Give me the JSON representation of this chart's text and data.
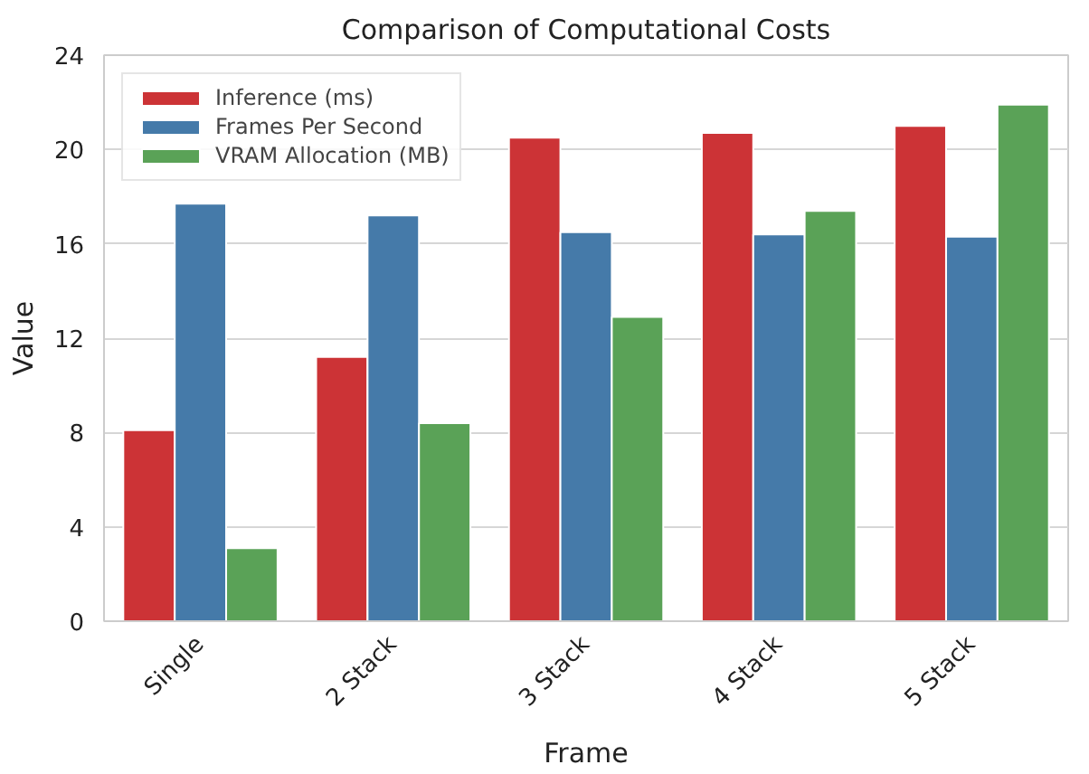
{
  "chart_data": {
    "type": "bar",
    "title": "Comparison of Computational Costs",
    "xlabel": "Frame",
    "ylabel": "Value",
    "categories": [
      "Single",
      "2 Stack",
      "3 Stack",
      "4 Stack",
      "5 Stack"
    ],
    "series": [
      {
        "name": "Inference (ms)",
        "color": "#cc3336",
        "values": [
          8.1,
          11.2,
          20.5,
          20.7,
          21.0
        ]
      },
      {
        "name": "Frames Per Second",
        "color": "#457aa9",
        "values": [
          17.7,
          17.2,
          16.5,
          16.4,
          16.3
        ]
      },
      {
        "name": "VRAM Allocation (MB)",
        "color": "#5aa257",
        "values": [
          3.1,
          8.4,
          12.9,
          17.4,
          21.9
        ]
      }
    ],
    "ylim": [
      0,
      24
    ],
    "yticks": [
      0,
      4,
      8,
      12,
      16,
      20,
      24
    ],
    "grid": "y",
    "legend": "top left"
  }
}
